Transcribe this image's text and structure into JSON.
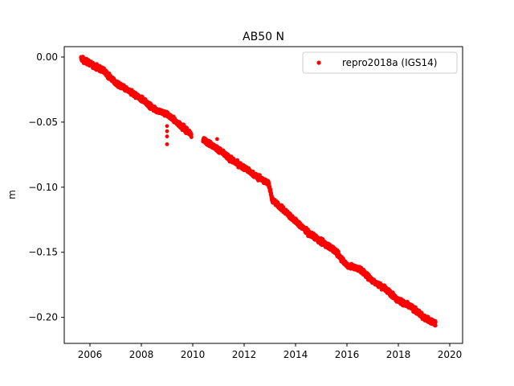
{
  "chart_data": {
    "type": "scatter",
    "title": "AB50 N",
    "xlabel": "",
    "ylabel": "m",
    "xlim": [
      2005.0,
      2020.5
    ],
    "ylim": [
      -0.22,
      0.008
    ],
    "xticks": [
      2006,
      2008,
      2010,
      2012,
      2014,
      2016,
      2018,
      2020
    ],
    "xtick_labels": [
      "2006",
      "2008",
      "2010",
      "2012",
      "2014",
      "2016",
      "2018",
      "2020"
    ],
    "yticks": [
      0.0,
      -0.05,
      -0.1,
      -0.15,
      -0.2
    ],
    "ytick_labels": [
      "0.00",
      "−0.05",
      "−0.10",
      "−0.15",
      "−0.20"
    ],
    "grid": false,
    "legend_position": "top-right",
    "series": [
      {
        "name": "repro2018a (IGS14)",
        "color": "#ff0000",
        "marker": "dot",
        "trend_points": [
          [
            2005.65,
            -0.001
          ],
          [
            2006.0,
            -0.005
          ],
          [
            2006.5,
            -0.01
          ],
          [
            2007.0,
            -0.02
          ],
          [
            2007.5,
            -0.026
          ],
          [
            2008.0,
            -0.032
          ],
          [
            2008.5,
            -0.04
          ],
          [
            2009.0,
            -0.044
          ],
          [
            2009.5,
            -0.052
          ],
          [
            2009.9,
            -0.059
          ],
          [
            2010.45,
            -0.064
          ],
          [
            2011.0,
            -0.071
          ],
          [
            2011.5,
            -0.079
          ],
          [
            2012.0,
            -0.085
          ],
          [
            2012.5,
            -0.092
          ],
          [
            2012.95,
            -0.097
          ],
          [
            2013.1,
            -0.11
          ],
          [
            2013.5,
            -0.117
          ],
          [
            2014.0,
            -0.126
          ],
          [
            2014.5,
            -0.135
          ],
          [
            2015.0,
            -0.142
          ],
          [
            2015.5,
            -0.148
          ],
          [
            2016.0,
            -0.16
          ],
          [
            2016.5,
            -0.163
          ],
          [
            2017.0,
            -0.172
          ],
          [
            2017.5,
            -0.178
          ],
          [
            2018.0,
            -0.187
          ],
          [
            2018.5,
            -0.192
          ],
          [
            2019.0,
            -0.2
          ],
          [
            2019.45,
            -0.205
          ]
        ],
        "gaps": [
          [
            2009.95,
            2010.4
          ]
        ],
        "outliers": [
          [
            2009.0,
            -0.053
          ],
          [
            2009.0,
            -0.057
          ],
          [
            2009.0,
            -0.061
          ],
          [
            2009.0,
            -0.067
          ],
          [
            2010.95,
            -0.063
          ]
        ]
      }
    ]
  }
}
